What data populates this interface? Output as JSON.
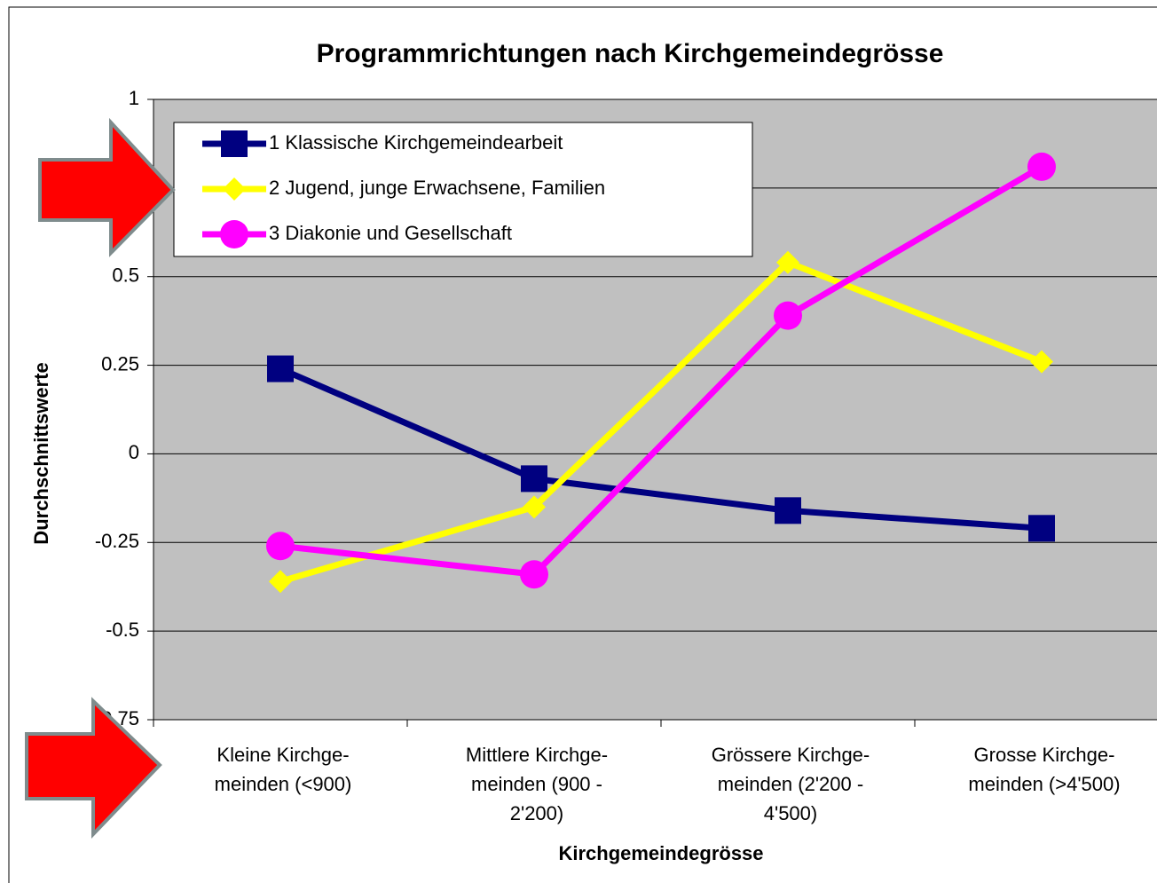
{
  "chart_data": {
    "type": "line",
    "title": "Programmrichtungen nach Kirchgemeindegrösse",
    "x_label": "Kirchgemeindegrösse",
    "y_label": "Durchschnittswerte",
    "categories": [
      [
        "Kleine Kirchge-",
        "meinden (<900)"
      ],
      [
        "Mittlere Kirchge-",
        "meinden (900 -",
        "2'200)"
      ],
      [
        "Grössere Kirchge-",
        "meinden (2'200 -",
        "4'500)"
      ],
      [
        "Grosse Kirchge-",
        "meinden (>4'500)"
      ]
    ],
    "series": [
      {
        "name": "1 Klassische Kirchgemeindearbeit",
        "color": "#000080",
        "marker": "square",
        "values": [
          0.24,
          -0.07,
          -0.16,
          -0.21
        ]
      },
      {
        "name": "2 Jugend, junge Erwachsene, Familien",
        "color": "#ffff00",
        "marker": "diamond",
        "values": [
          -0.36,
          -0.15,
          0.54,
          0.26
        ]
      },
      {
        "name": "3 Diakonie und Gesellschaft",
        "color": "#ff00ff",
        "marker": "circle",
        "values": [
          -0.26,
          -0.34,
          0.39,
          0.81
        ]
      }
    ],
    "ylim": [
      -0.75,
      1
    ],
    "yticks": [
      -0.75,
      -0.5,
      -0.25,
      0,
      0.25,
      0.5,
      0.75,
      1
    ],
    "grid": true,
    "legend": "top-left"
  }
}
